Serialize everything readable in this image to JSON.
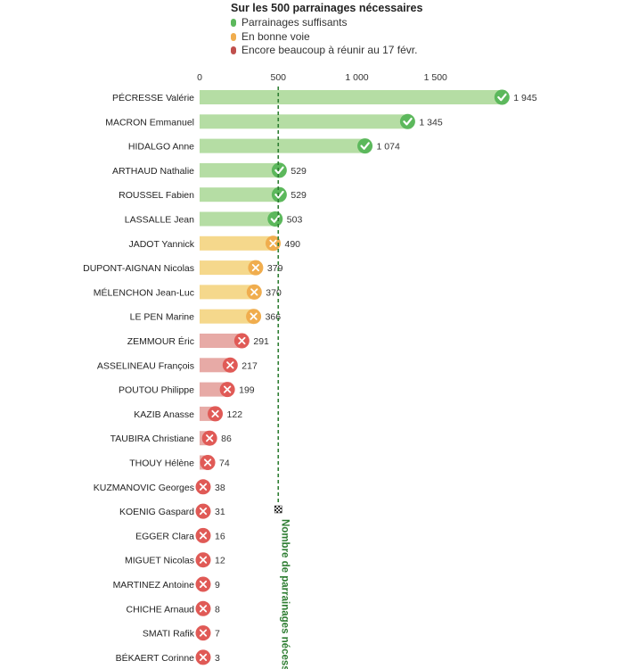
{
  "legend": {
    "title": "Sur les 500 parrainages nécessaires",
    "items": [
      {
        "label": "Parrainages suffisants",
        "color": "#5cb85c",
        "key": "ok"
      },
      {
        "label": "En bonne voie",
        "color": "#f0ad4e",
        "key": "near"
      },
      {
        "label": "Encore beaucoup à réunir au 17 févr.",
        "color": "#c0504d",
        "key": "far"
      }
    ]
  },
  "colors": {
    "ok_bar": "#b5dda4",
    "ok_icon": "#5cb85c",
    "near_bar": "#f5d88c",
    "near_icon": "#f0ad4e",
    "far_bar": "#e7aaa6",
    "far_icon": "#e05a56",
    "threshold_line": "#2e7d32"
  },
  "chart_data": {
    "type": "bar",
    "orientation": "horizontal",
    "xlim": [
      0,
      2000
    ],
    "ticks": [
      {
        "value": 0,
        "label": "0"
      },
      {
        "value": 500,
        "label": "500"
      },
      {
        "value": 1000,
        "label": "1 000"
      },
      {
        "value": 1500,
        "label": "1 500"
      }
    ],
    "threshold": {
      "value": 500,
      "label": "Nombre de parrainages nécessaires"
    },
    "candidates": [
      {
        "name": "PÉCRESSE Valérie",
        "value": 1945,
        "label": "1 945",
        "status": "ok"
      },
      {
        "name": "MACRON Emmanuel",
        "value": 1345,
        "label": "1 345",
        "status": "ok"
      },
      {
        "name": "HIDALGO Anne",
        "value": 1074,
        "label": "1 074",
        "status": "ok"
      },
      {
        "name": "ARTHAUD Nathalie",
        "value": 529,
        "label": "529",
        "status": "ok"
      },
      {
        "name": "ROUSSEL Fabien",
        "value": 529,
        "label": "529",
        "status": "ok"
      },
      {
        "name": "LASSALLE Jean",
        "value": 503,
        "label": "503",
        "status": "ok"
      },
      {
        "name": "JADOT Yannick",
        "value": 490,
        "label": "490",
        "status": "near"
      },
      {
        "name": "DUPONT-AIGNAN Nicolas",
        "value": 379,
        "label": "379",
        "status": "near"
      },
      {
        "name": "MÉLENCHON Jean-Luc",
        "value": 370,
        "label": "370",
        "status": "near"
      },
      {
        "name": "LE PEN Marine",
        "value": 366,
        "label": "366",
        "status": "near"
      },
      {
        "name": "ZEMMOUR Éric",
        "value": 291,
        "label": "291",
        "status": "far"
      },
      {
        "name": "ASSELINEAU François",
        "value": 217,
        "label": "217",
        "status": "far"
      },
      {
        "name": "POUTOU Philippe",
        "value": 199,
        "label": "199",
        "status": "far"
      },
      {
        "name": "KAZIB Anasse",
        "value": 122,
        "label": "122",
        "status": "far"
      },
      {
        "name": "TAUBIRA Christiane",
        "value": 86,
        "label": "86",
        "status": "far"
      },
      {
        "name": "THOUY Hélène",
        "value": 74,
        "label": "74",
        "status": "far"
      },
      {
        "name": "KUZMANOVIC Georges",
        "value": 38,
        "label": "38",
        "status": "far"
      },
      {
        "name": "KOENIG Gaspard",
        "value": 31,
        "label": "31",
        "status": "far"
      },
      {
        "name": "EGGER Clara",
        "value": 16,
        "label": "16",
        "status": "far"
      },
      {
        "name": "MIGUET Nicolas",
        "value": 12,
        "label": "12",
        "status": "far"
      },
      {
        "name": "MARTINEZ Antoine",
        "value": 9,
        "label": "9",
        "status": "far"
      },
      {
        "name": "CHICHE Arnaud",
        "value": 8,
        "label": "8",
        "status": "far"
      },
      {
        "name": "SMATI Rafik",
        "value": 7,
        "label": "7",
        "status": "far"
      },
      {
        "name": "BÉKAERT Corinne",
        "value": 3,
        "label": "3",
        "status": "far"
      }
    ]
  }
}
